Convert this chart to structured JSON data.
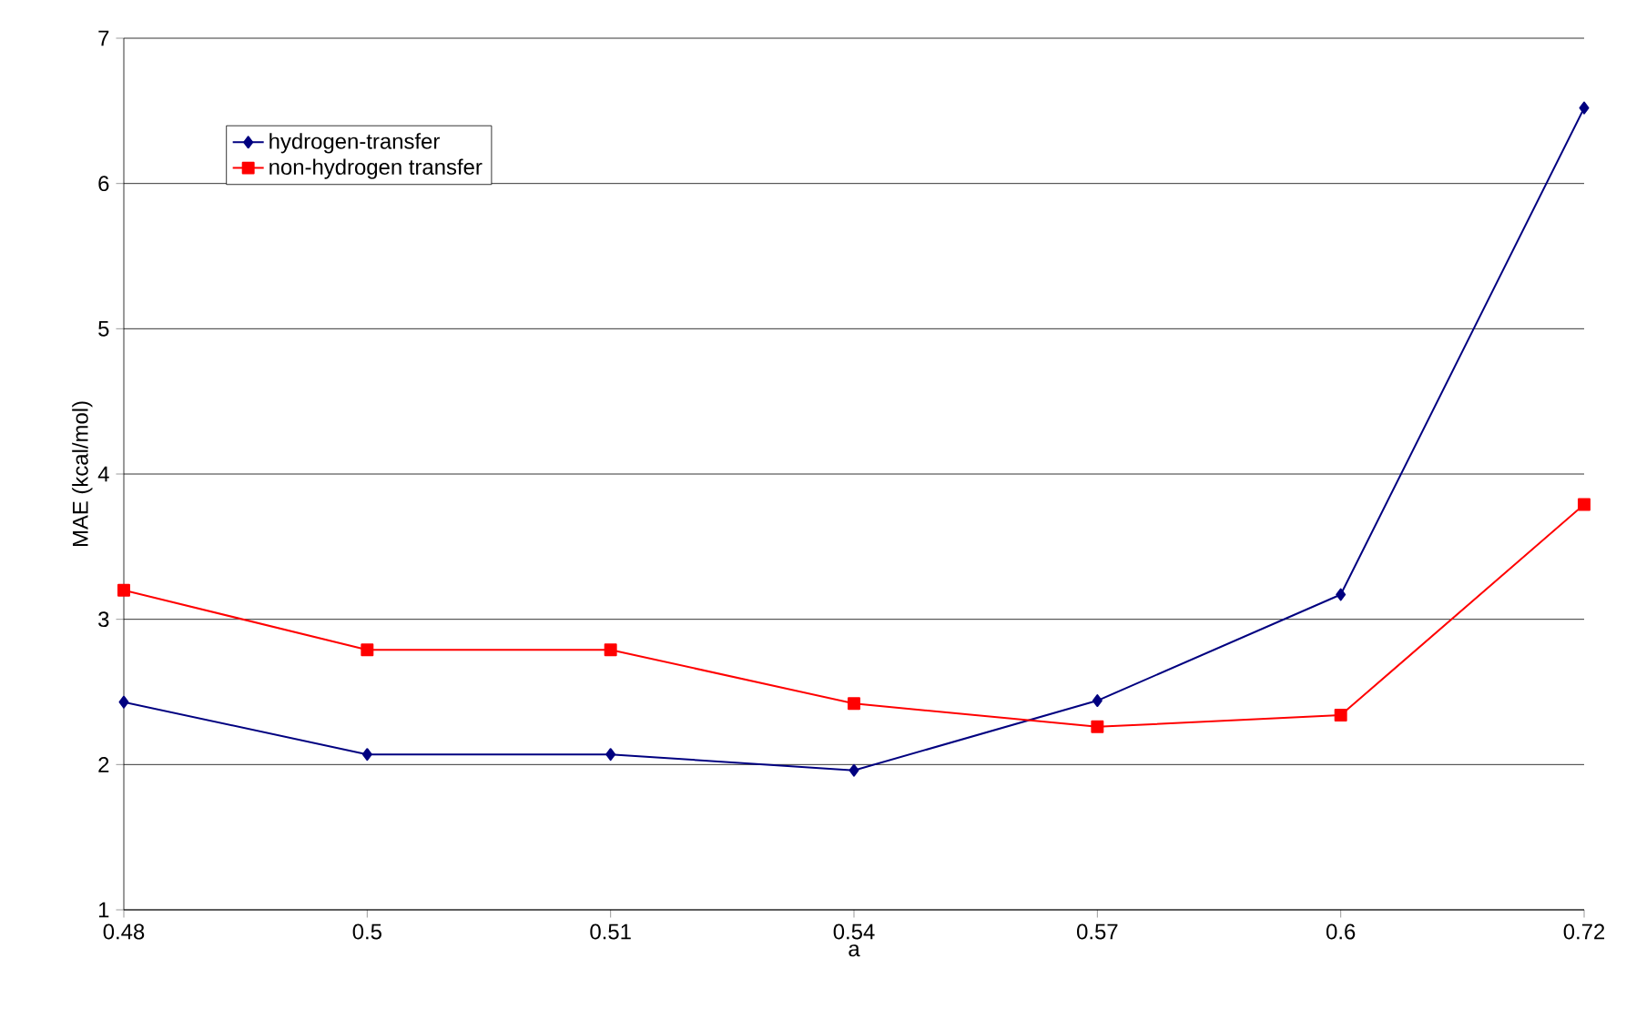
{
  "chart_data": {
    "type": "line",
    "xlabel": "a",
    "ylabel": "MAE (kcal/mol)",
    "categories": [
      "0.48",
      "0.5",
      "0.51",
      "0.54",
      "0.57",
      "0.6",
      "0.72"
    ],
    "series": [
      {
        "name": "hydrogen-transfer",
        "color": "#000080",
        "marker": "diamond",
        "values": [
          2.43,
          2.07,
          2.07,
          1.96,
          2.44,
          3.17,
          6.52
        ]
      },
      {
        "name": "non-hydrogen transfer",
        "color": "#ff0000",
        "marker": "square",
        "values": [
          3.2,
          2.79,
          2.79,
          2.42,
          2.26,
          2.34,
          3.79
        ]
      }
    ],
    "ylim": [
      1,
      7
    ],
    "yticks": [
      1,
      2,
      3,
      4,
      5,
      6,
      7
    ],
    "grid": "y",
    "legend": "top left"
  }
}
